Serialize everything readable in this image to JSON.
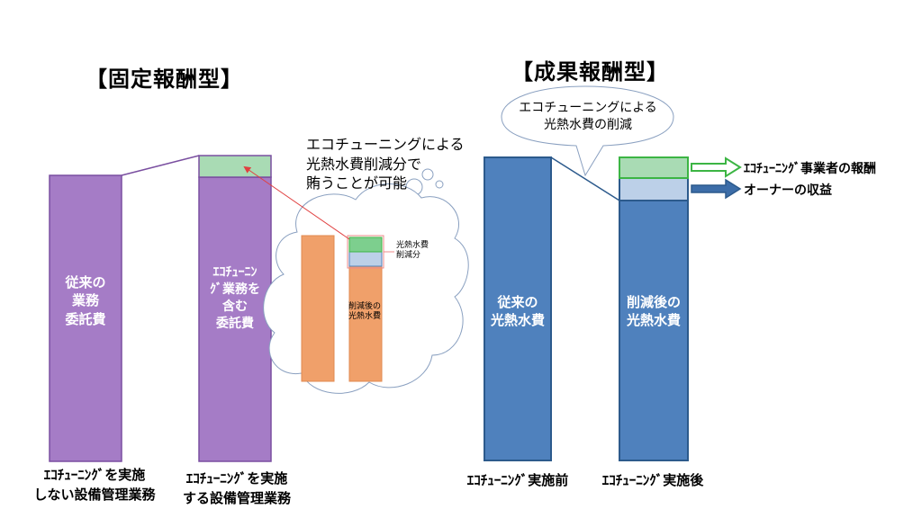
{
  "left": {
    "title": "【固定報酬型】",
    "bar1_label": [
      "従来の",
      "業務",
      "委託費"
    ],
    "bar2_label": [
      "ｴｺﾁｭｰﾆﾝ",
      "ｸﾞ業務を",
      "含む",
      "委託費"
    ],
    "caption1": [
      "ｴｺﾁｭｰﾆﾝｸﾞを実施",
      "しない設備管理業務"
    ],
    "caption2": [
      "ｴｺﾁｭｰﾆﾝｸﾞを実施",
      "する設備管理業務"
    ],
    "thought": [
      "エコチューニングによる",
      "光熱水費削減分で",
      "賄うことが可能"
    ],
    "cloud_bar_label": [
      "削減後の",
      "光熱水費"
    ],
    "cloud_savings_label": [
      "光熱水費",
      "削減分"
    ]
  },
  "right": {
    "title": "【成果報酬型】",
    "bubble": [
      "エコチューニングによる",
      "光熱水費の削減"
    ],
    "bar1_label": [
      "従来の",
      "光熱水費"
    ],
    "bar2_label": [
      "削減後の",
      "光熱水費"
    ],
    "caption1": "ｴｺﾁｭｰﾆﾝｸﾞ実施前",
    "caption2": "ｴｺﾁｭｰﾆﾝｸﾞ実施後",
    "arrow1_label": "ｴｺﾁｭｰﾆﾝｸﾞ事業者の報酬",
    "arrow2_label": "オーナーの収益"
  },
  "colors": {
    "purple_bar": "#a57cc6",
    "purple_border": "#7a4fa0",
    "blue_bar": "#4f81bd",
    "blue_border": "#2c5a8c",
    "green": "#a9dbb4",
    "green_dark": "#4caf50",
    "light_blue": "#bcd0e8",
    "orange": "#f0a06a",
    "arrow_green": "#3cb544",
    "arrow_blue": "#3c6da8"
  }
}
